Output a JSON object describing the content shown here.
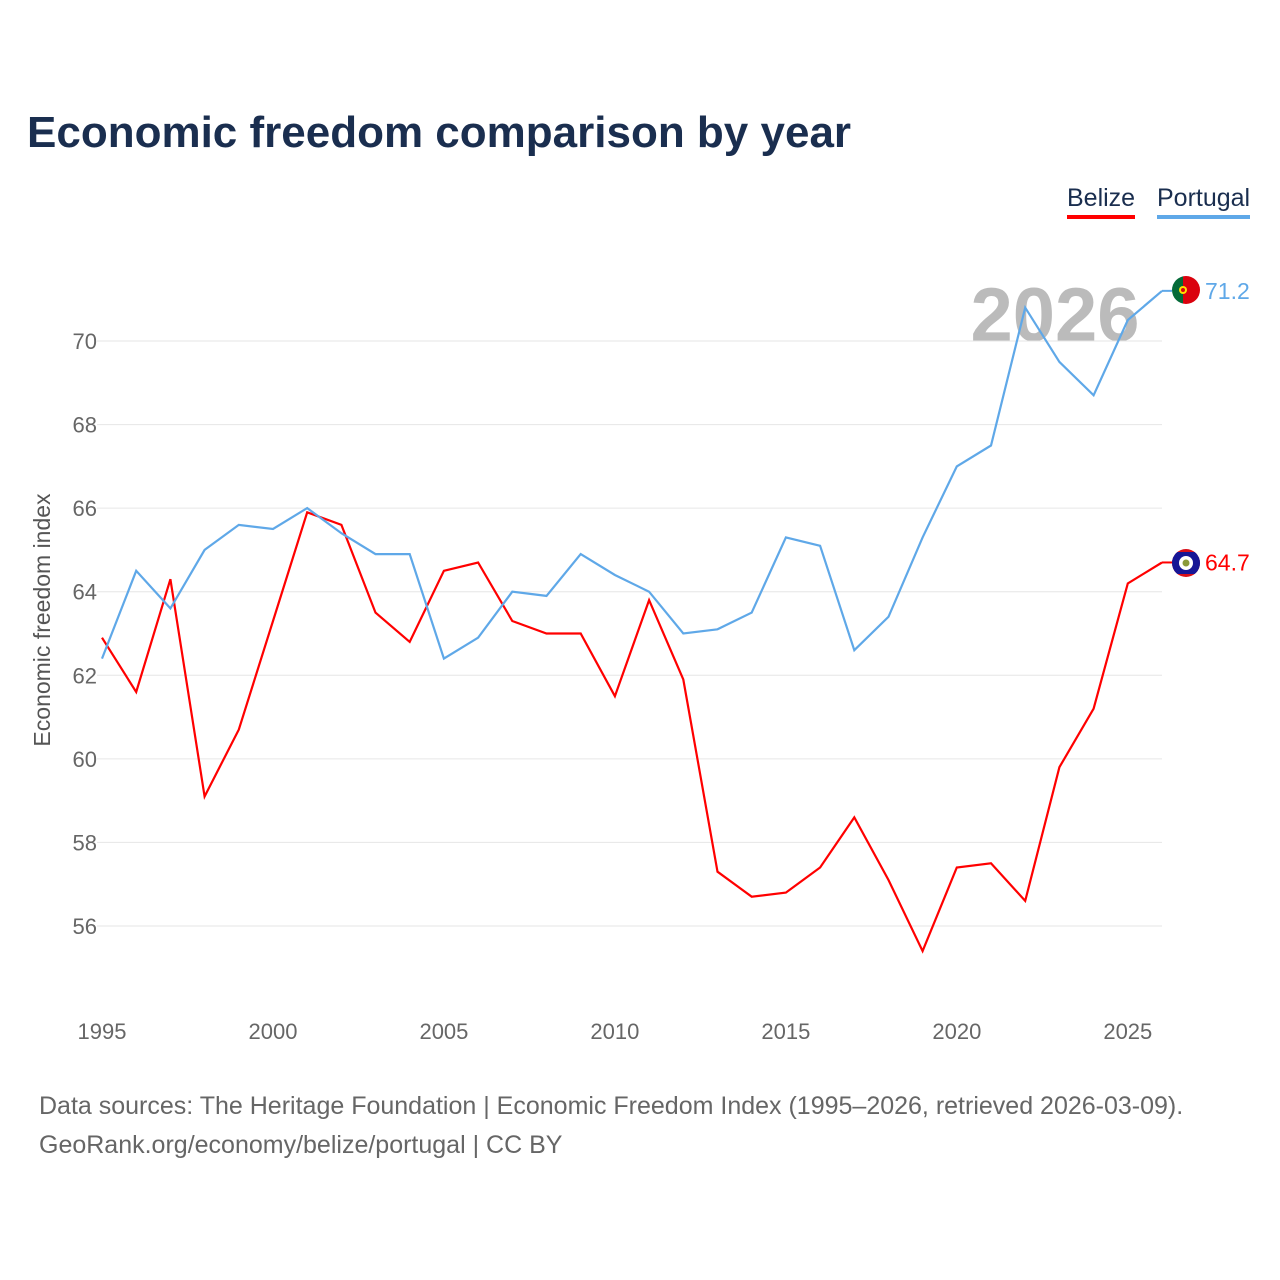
{
  "title": "Economic freedom comparison by year",
  "legend": [
    {
      "label": "Belize",
      "color": "#ff0000"
    },
    {
      "label": "Portugal",
      "color": "#5fa8e8"
    }
  ],
  "footer": {
    "line1": "Data sources: The Heritage Foundation | Economic Freedom Index (1995–2026, retrieved 2026-03-09).",
    "line2": "GeoRank.org/economy/belize/portugal | CC BY"
  },
  "chart_data": {
    "type": "line",
    "title": "Economic freedom comparison by year",
    "xlabel": "",
    "ylabel": "Economic freedom index",
    "watermark_year": "2026",
    "xlim": [
      1995,
      2026
    ],
    "ylim": [
      54.2,
      72
    ],
    "x_ticks": [
      1995,
      2000,
      2005,
      2010,
      2015,
      2020,
      2025
    ],
    "y_ticks": [
      56,
      58,
      60,
      62,
      64,
      66,
      68,
      70
    ],
    "grid": true,
    "legend_position": "top-right",
    "x": [
      1995,
      1996,
      1997,
      1998,
      1999,
      2000,
      2001,
      2002,
      2003,
      2004,
      2005,
      2006,
      2007,
      2008,
      2009,
      2010,
      2011,
      2012,
      2013,
      2014,
      2015,
      2016,
      2017,
      2018,
      2019,
      2020,
      2021,
      2022,
      2023,
      2024,
      2025,
      2026
    ],
    "series": [
      {
        "name": "Belize",
        "color": "#ff0000",
        "end_label": "64.7",
        "values": [
          62.9,
          61.6,
          64.3,
          59.1,
          60.7,
          63.3,
          65.9,
          65.6,
          63.5,
          62.8,
          64.5,
          64.7,
          63.3,
          63.0,
          63.0,
          61.5,
          63.8,
          61.9,
          57.3,
          56.7,
          56.8,
          57.4,
          58.6,
          57.1,
          55.4,
          57.4,
          57.5,
          56.6,
          59.8,
          61.2,
          64.2,
          64.7
        ]
      },
      {
        "name": "Portugal",
        "color": "#5fa8e8",
        "end_label": "71.2",
        "values": [
          62.4,
          64.5,
          63.6,
          65.0,
          65.6,
          65.5,
          66.0,
          65.4,
          64.9,
          64.9,
          62.4,
          62.9,
          64.0,
          63.9,
          64.9,
          64.4,
          64.0,
          63.0,
          63.1,
          63.5,
          65.3,
          65.1,
          62.6,
          63.4,
          65.3,
          67.0,
          67.5,
          70.8,
          69.5,
          68.7,
          70.5,
          71.2
        ]
      }
    ]
  }
}
